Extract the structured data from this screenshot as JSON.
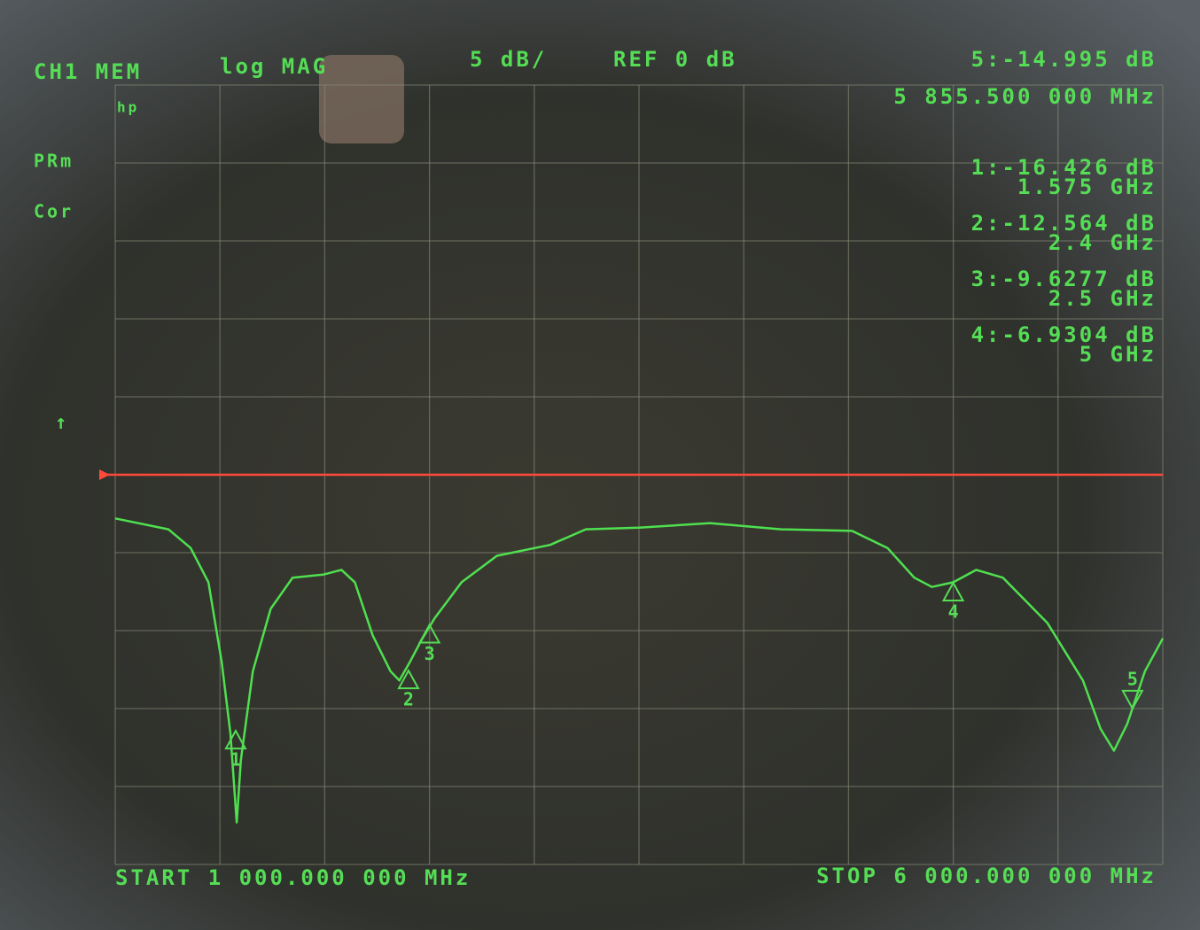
{
  "chart_data": {
    "type": "line",
    "channel": "CH1 MEM",
    "format": "log MAG",
    "scale": "5 dB/",
    "reference": "REF 0 dB",
    "reference_value": 0,
    "reference_color": "#ff4a3a",
    "logo": "hp",
    "status": [
      "PRm",
      "Cor"
    ],
    "start": "START 1 000.000 000 MHz",
    "stop": "STOP 6 000.000 000 MHz",
    "xlim": [
      1,
      6
    ],
    "ylim": [
      -25,
      25
    ],
    "series": [
      {
        "color": "#4fe04f",
        "x": [
          1.0,
          1.254,
          1.36,
          1.445,
          1.508,
          1.55,
          1.58,
          1.6,
          1.657,
          1.742,
          1.847,
          1.996,
          2.08,
          2.144,
          2.229,
          2.314,
          2.356,
          2.407,
          2.462,
          2.525,
          2.653,
          2.822,
          3.076,
          3.246,
          3.5,
          3.839,
          4.178,
          4.517,
          4.686,
          4.814,
          4.898,
          5.0,
          5.11,
          5.237,
          5.449,
          5.619,
          5.703,
          5.767,
          5.83,
          5.915,
          6.0
        ],
        "values": [
          -2.8,
          -3.5,
          -4.7,
          -6.9,
          -12.0,
          -16.6,
          -22.3,
          -18.3,
          -12.6,
          -8.6,
          -6.6,
          -6.4,
          -6.1,
          -6.9,
          -10.3,
          -12.6,
          -13.2,
          -12.0,
          -10.6,
          -9.2,
          -6.9,
          -5.2,
          -4.5,
          -3.5,
          -3.4,
          -3.1,
          -3.5,
          -3.6,
          -4.7,
          -6.6,
          -7.2,
          -6.9,
          -6.1,
          -6.6,
          -9.5,
          -13.2,
          -16.3,
          -17.7,
          -16.0,
          -12.6,
          -10.5
        ]
      }
    ],
    "active_marker": "5",
    "markers": [
      {
        "name": "1",
        "prefix": "1:",
        "x": 1.575,
        "x_label": "1.575 GHz",
        "y": -16.426,
        "y_label": "-16.426 dB"
      },
      {
        "name": "2",
        "prefix": "2:",
        "x": 2.4,
        "x_label": "2.4 GHz",
        "y": -12.564,
        "y_label": "-12.564 dB"
      },
      {
        "name": "3",
        "prefix": "3:",
        "x": 2.5,
        "x_label": "2.5 GHz",
        "y": -9.6277,
        "y_label": "-9.6277 dB"
      },
      {
        "name": "4",
        "prefix": "4:",
        "x": 5,
        "x_label": "5 GHz",
        "y": -6.9304,
        "y_label": "-6.9304 dB"
      },
      {
        "name": "5",
        "prefix": "5:",
        "x": 5.8555,
        "x_label": "5 855.500 000 MHz",
        "y": -14.995,
        "y_label": "-14.995 dB"
      }
    ]
  }
}
